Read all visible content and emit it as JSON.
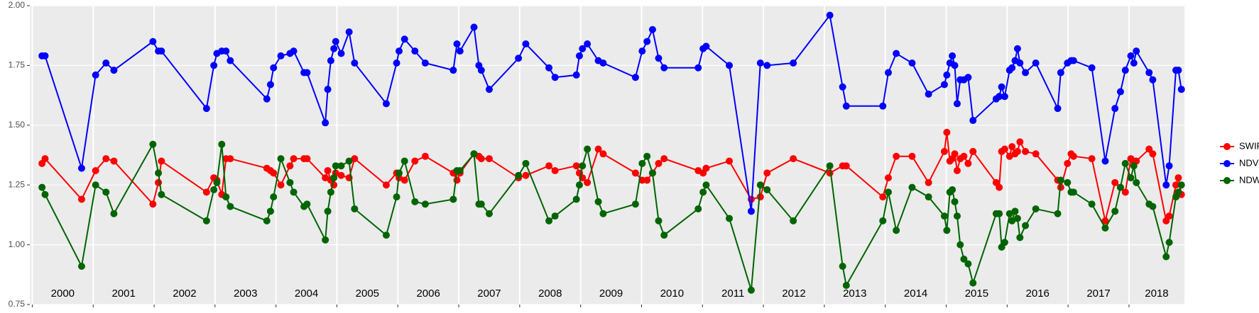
{
  "chart_data": {
    "type": "line",
    "x": [
      2000.16,
      2000.21,
      2000.81,
      2001.04,
      2001.21,
      2001.34,
      2001.98,
      2002.07,
      2002.12,
      2002.86,
      2002.98,
      2003.03,
      2003.11,
      2003.18,
      2003.25,
      2003.85,
      2003.91,
      2003.96,
      2004.08,
      2004.23,
      2004.29,
      2004.46,
      2004.51,
      2004.81,
      2004.85,
      2004.9,
      2004.95,
      2004.98,
      2005.07,
      2005.2,
      2005.29,
      2005.81,
      2005.98,
      2006.02,
      2006.11,
      2006.28,
      2006.45,
      2006.91,
      2006.97,
      2007.02,
      2007.25,
      2007.33,
      2007.37,
      2007.5,
      2007.98,
      2008.1,
      2008.48,
      2008.58,
      2008.93,
      2008.98,
      2009.03,
      2009.11,
      2009.29,
      2009.37,
      2009.9,
      2010.01,
      2010.09,
      2010.18,
      2010.28,
      2010.37,
      2010.93,
      2011.01,
      2011.06,
      2011.44,
      2011.8,
      2011.95,
      2012.06,
      2012.49,
      2013.09,
      2013.3,
      2013.36,
      2013.96,
      2014.05,
      2014.18,
      2014.44,
      2014.71,
      2014.97,
      2015.01,
      2015.06,
      2015.1,
      2015.14,
      2015.18,
      2015.23,
      2015.29,
      2015.36,
      2015.44,
      2015.82,
      2015.87,
      2015.91,
      2015.96,
      2016.04,
      2016.08,
      2016.13,
      2016.17,
      2016.21,
      2016.3,
      2016.47,
      2016.83,
      2016.88,
      2016.99,
      2017.05,
      2017.09,
      2017.39,
      2017.61,
      2017.77,
      2017.86,
      2017.94,
      2018.03,
      2018.08,
      2018.12,
      2018.33,
      2018.39,
      2018.61,
      2018.66,
      2018.77,
      2018.81,
      2018.86
    ],
    "series": [
      {
        "name": "SWIR",
        "color": "#ff0000",
        "values": [
          1.34,
          1.36,
          1.19,
          1.31,
          1.36,
          1.35,
          1.17,
          1.26,
          1.35,
          1.22,
          1.28,
          1.27,
          1.21,
          1.36,
          1.36,
          1.32,
          1.31,
          1.3,
          1.25,
          1.33,
          1.36,
          1.36,
          1.36,
          1.28,
          1.31,
          1.27,
          1.25,
          1.3,
          1.29,
          1.28,
          1.36,
          1.25,
          1.3,
          1.28,
          1.27,
          1.35,
          1.37,
          1.3,
          1.27,
          1.3,
          1.38,
          1.37,
          1.36,
          1.36,
          1.28,
          1.29,
          1.33,
          1.31,
          1.33,
          1.3,
          1.28,
          1.26,
          1.4,
          1.38,
          1.3,
          1.27,
          1.27,
          1.3,
          1.34,
          1.36,
          1.31,
          1.3,
          1.32,
          1.35,
          1.19,
          1.2,
          1.3,
          1.36,
          1.3,
          1.33,
          1.33,
          1.2,
          1.28,
          1.37,
          1.37,
          1.26,
          1.39,
          1.47,
          1.35,
          1.36,
          1.38,
          1.31,
          1.36,
          1.37,
          1.34,
          1.39,
          1.26,
          1.24,
          1.39,
          1.4,
          1.37,
          1.41,
          1.38,
          1.39,
          1.43,
          1.39,
          1.38,
          1.27,
          1.24,
          1.34,
          1.38,
          1.37,
          1.36,
          1.1,
          1.26,
          1.24,
          1.22,
          1.36,
          1.35,
          1.35,
          1.4,
          1.38,
          1.1,
          1.12,
          1.25,
          1.28,
          1.21
        ]
      },
      {
        "name": "NDVI",
        "color": "#0000ff",
        "values": [
          1.79,
          1.79,
          1.32,
          1.71,
          1.76,
          1.73,
          1.85,
          1.81,
          1.81,
          1.57,
          1.75,
          1.8,
          1.81,
          1.81,
          1.77,
          1.61,
          1.67,
          1.74,
          1.79,
          1.8,
          1.81,
          1.72,
          1.72,
          1.51,
          1.65,
          1.77,
          1.82,
          1.85,
          1.8,
          1.89,
          1.76,
          1.59,
          1.76,
          1.81,
          1.86,
          1.81,
          1.76,
          1.73,
          1.84,
          1.81,
          1.91,
          1.75,
          1.73,
          1.65,
          1.78,
          1.84,
          1.74,
          1.7,
          1.71,
          1.79,
          1.82,
          1.84,
          1.77,
          1.76,
          1.7,
          1.81,
          1.85,
          1.9,
          1.78,
          1.74,
          1.74,
          1.82,
          1.83,
          1.75,
          1.14,
          1.76,
          1.75,
          1.76,
          1.96,
          1.66,
          1.58,
          1.58,
          1.72,
          1.8,
          1.76,
          1.63,
          1.67,
          1.71,
          1.76,
          1.79,
          1.75,
          1.59,
          1.69,
          1.69,
          1.7,
          1.52,
          1.61,
          1.62,
          1.66,
          1.62,
          1.73,
          1.74,
          1.77,
          1.82,
          1.76,
          1.72,
          1.76,
          1.57,
          1.72,
          1.76,
          1.77,
          1.77,
          1.74,
          1.35,
          1.57,
          1.64,
          1.73,
          1.79,
          1.76,
          1.81,
          1.72,
          1.69,
          1.25,
          1.33,
          1.73,
          1.73,
          1.65
        ]
      },
      {
        "name": "NDWI",
        "color": "#006400",
        "values": [
          1.24,
          1.21,
          0.91,
          1.25,
          1.22,
          1.13,
          1.42,
          1.3,
          1.21,
          1.1,
          1.23,
          1.26,
          1.42,
          1.2,
          1.16,
          1.1,
          1.14,
          1.2,
          1.36,
          1.26,
          1.22,
          1.16,
          1.17,
          1.02,
          1.14,
          1.22,
          1.28,
          1.33,
          1.33,
          1.35,
          1.15,
          1.04,
          1.2,
          1.3,
          1.35,
          1.18,
          1.17,
          1.19,
          1.31,
          1.31,
          1.38,
          1.17,
          1.17,
          1.13,
          1.29,
          1.34,
          1.1,
          1.12,
          1.19,
          1.25,
          1.33,
          1.4,
          1.18,
          1.13,
          1.17,
          1.34,
          1.37,
          1.3,
          1.1,
          1.04,
          1.15,
          1.22,
          1.25,
          1.11,
          0.81,
          1.25,
          1.23,
          1.1,
          1.33,
          0.91,
          0.83,
          1.1,
          1.22,
          1.06,
          1.24,
          1.2,
          1.12,
          1.06,
          1.22,
          1.23,
          1.18,
          1.12,
          1.0,
          0.94,
          0.92,
          0.84,
          1.13,
          1.13,
          0.99,
          1.01,
          1.13,
          1.1,
          1.14,
          1.11,
          1.03,
          1.08,
          1.15,
          1.13,
          1.27,
          1.26,
          1.22,
          1.22,
          1.17,
          1.07,
          1.14,
          1.24,
          1.34,
          1.28,
          1.33,
          1.26,
          1.17,
          1.16,
          0.95,
          1.01,
          1.2,
          1.22,
          1.25
        ]
      }
    ],
    "xlim": [
      1999.96,
      2018.91
    ],
    "xticks": [
      2000,
      2001,
      2002,
      2003,
      2004,
      2005,
      2006,
      2007,
      2008,
      2009,
      2010,
      2011,
      2012,
      2013,
      2014,
      2015,
      2016,
      2017,
      2018
    ],
    "annotations": [
      "2000",
      "2001",
      "2002",
      "2003",
      "2004",
      "2005",
      "2006",
      "2007",
      "2008",
      "2009",
      "2010",
      "2011",
      "2012",
      "2013",
      "2014",
      "2015",
      "2016",
      "2017",
      "2018"
    ],
    "ylim": [
      0.75,
      2.0
    ],
    "yticks": [
      0.75,
      {
        "value": 1.0,
        "label": "1.00"
      },
      1.25,
      {
        "value": 1.5,
        "label": "1.50"
      },
      1.75,
      {
        "value": 2.0,
        "label": "2.00"
      }
    ],
    "grid": true,
    "legend": "right"
  }
}
